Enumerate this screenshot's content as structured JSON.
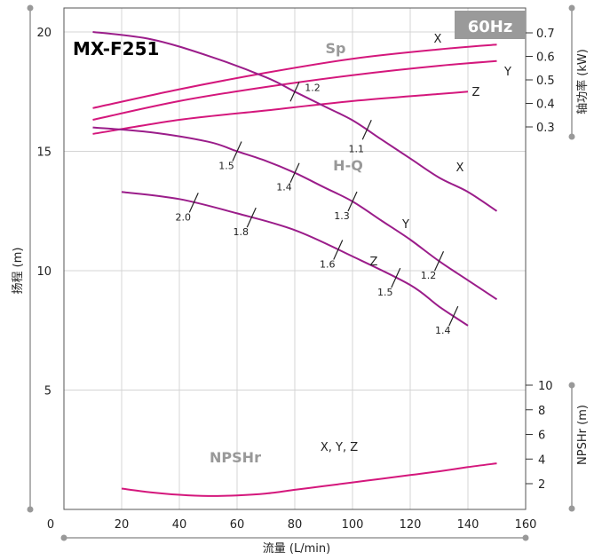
{
  "chart_data": {
    "type": "line",
    "model": "MX-F251",
    "frequency": "60Hz",
    "xlabel": "流量 (L/min)",
    "ylabel_left": "扬程 (m)",
    "ylabel_right_power": "轴功率 (kW)",
    "ylabel_right_npsh": "NPSHr (m)",
    "xlim": [
      0,
      160
    ],
    "ylim_head": [
      0,
      20
    ],
    "ylim_power": [
      0,
      0.7
    ],
    "ylim_npsh": [
      0,
      10
    ],
    "x_ticks": [
      "20",
      "40",
      "60",
      "80",
      "100",
      "120",
      "140",
      "160"
    ],
    "x_tick_values": [
      20,
      40,
      60,
      80,
      100,
      120,
      140,
      160
    ],
    "x_zero_label": "0",
    "head_ticks": [
      "5",
      "10",
      "15",
      "20"
    ],
    "head_tick_values": [
      5,
      10,
      15,
      20
    ],
    "power_ticks": [
      "0.3",
      "0.4",
      "0.5",
      "0.6",
      "0.7"
    ],
    "power_tick_values": [
      0.3,
      0.4,
      0.5,
      0.6,
      0.7
    ],
    "npsh_ticks": [
      "2",
      "4",
      "6",
      "8",
      "10"
    ],
    "npsh_tick_values": [
      2,
      4,
      6,
      8,
      10
    ],
    "curve_group_labels": {
      "shaft_power": "Sp",
      "head": "H-Q",
      "npsh": "NPSHr"
    },
    "head_series": [
      {
        "name": "X",
        "points": [
          [
            10,
            20.0
          ],
          [
            30,
            19.7
          ],
          [
            50,
            19.0
          ],
          [
            70,
            18.1
          ],
          [
            80,
            17.5
          ],
          [
            90,
            16.9
          ],
          [
            100,
            16.3
          ],
          [
            110,
            15.5
          ],
          [
            120,
            14.7
          ],
          [
            130,
            13.9
          ],
          [
            140,
            13.3
          ],
          [
            150,
            12.5
          ]
        ],
        "efficiency_marks": [
          {
            "x": 80,
            "label": "1.2"
          },
          {
            "x": 105,
            "label": "1.1"
          }
        ]
      },
      {
        "name": "Y",
        "points": [
          [
            10,
            16.0
          ],
          [
            30,
            15.8
          ],
          [
            50,
            15.4
          ],
          [
            60,
            15.0
          ],
          [
            70,
            14.6
          ],
          [
            80,
            14.1
          ],
          [
            90,
            13.5
          ],
          [
            100,
            12.9
          ],
          [
            110,
            12.1
          ],
          [
            120,
            11.3
          ],
          [
            130,
            10.4
          ],
          [
            140,
            9.6
          ],
          [
            150,
            8.8
          ]
        ],
        "efficiency_marks": [
          {
            "x": 60,
            "label": "1.5"
          },
          {
            "x": 80,
            "label": "1.4"
          },
          {
            "x": 100,
            "label": "1.3"
          },
          {
            "x": 130,
            "label": "1.2"
          }
        ]
      },
      {
        "name": "Z",
        "points": [
          [
            20,
            13.3
          ],
          [
            40,
            13.0
          ],
          [
            60,
            12.4
          ],
          [
            80,
            11.7
          ],
          [
            100,
            10.6
          ],
          [
            120,
            9.4
          ],
          [
            130,
            8.5
          ],
          [
            140,
            7.7
          ]
        ],
        "efficiency_marks": [
          {
            "x": 45,
            "label": "2.0"
          },
          {
            "x": 65,
            "label": "1.8"
          },
          {
            "x": 95,
            "label": "1.6"
          },
          {
            "x": 115,
            "label": "1.5"
          },
          {
            "x": 135,
            "label": "1.4"
          }
        ]
      }
    ],
    "power_series": [
      {
        "name": "X",
        "points": [
          [
            10,
            0.38
          ],
          [
            40,
            0.46
          ],
          [
            70,
            0.53
          ],
          [
            100,
            0.59
          ],
          [
            130,
            0.63
          ],
          [
            150,
            0.65
          ]
        ]
      },
      {
        "name": "Y",
        "points": [
          [
            10,
            0.33
          ],
          [
            40,
            0.41
          ],
          [
            70,
            0.47
          ],
          [
            100,
            0.52
          ],
          [
            130,
            0.56
          ],
          [
            150,
            0.58
          ]
        ]
      },
      {
        "name": "Z",
        "points": [
          [
            10,
            0.27
          ],
          [
            40,
            0.33
          ],
          [
            70,
            0.37
          ],
          [
            100,
            0.41
          ],
          [
            130,
            0.44
          ],
          [
            140,
            0.45
          ]
        ]
      }
    ],
    "npsh_series": [
      {
        "name": "X, Y, Z",
        "points": [
          [
            20,
            1.6
          ],
          [
            30,
            1.3
          ],
          [
            40,
            1.1
          ],
          [
            50,
            1.0
          ],
          [
            60,
            1.05
          ],
          [
            70,
            1.2
          ],
          [
            80,
            1.5
          ],
          [
            90,
            1.8
          ],
          [
            100,
            2.1
          ],
          [
            110,
            2.4
          ],
          [
            120,
            2.7
          ],
          [
            130,
            3.0
          ],
          [
            140,
            3.35
          ],
          [
            150,
            3.65
          ]
        ]
      }
    ],
    "colors": {
      "head_curve": "#9b1d8a",
      "power_curve": "#d4177c",
      "npsh_curve": "#d4177c",
      "hz_badge": "#9a9a9a",
      "grid": "#d4d4d4",
      "axis_line": "#999999"
    },
    "grid": true
  }
}
